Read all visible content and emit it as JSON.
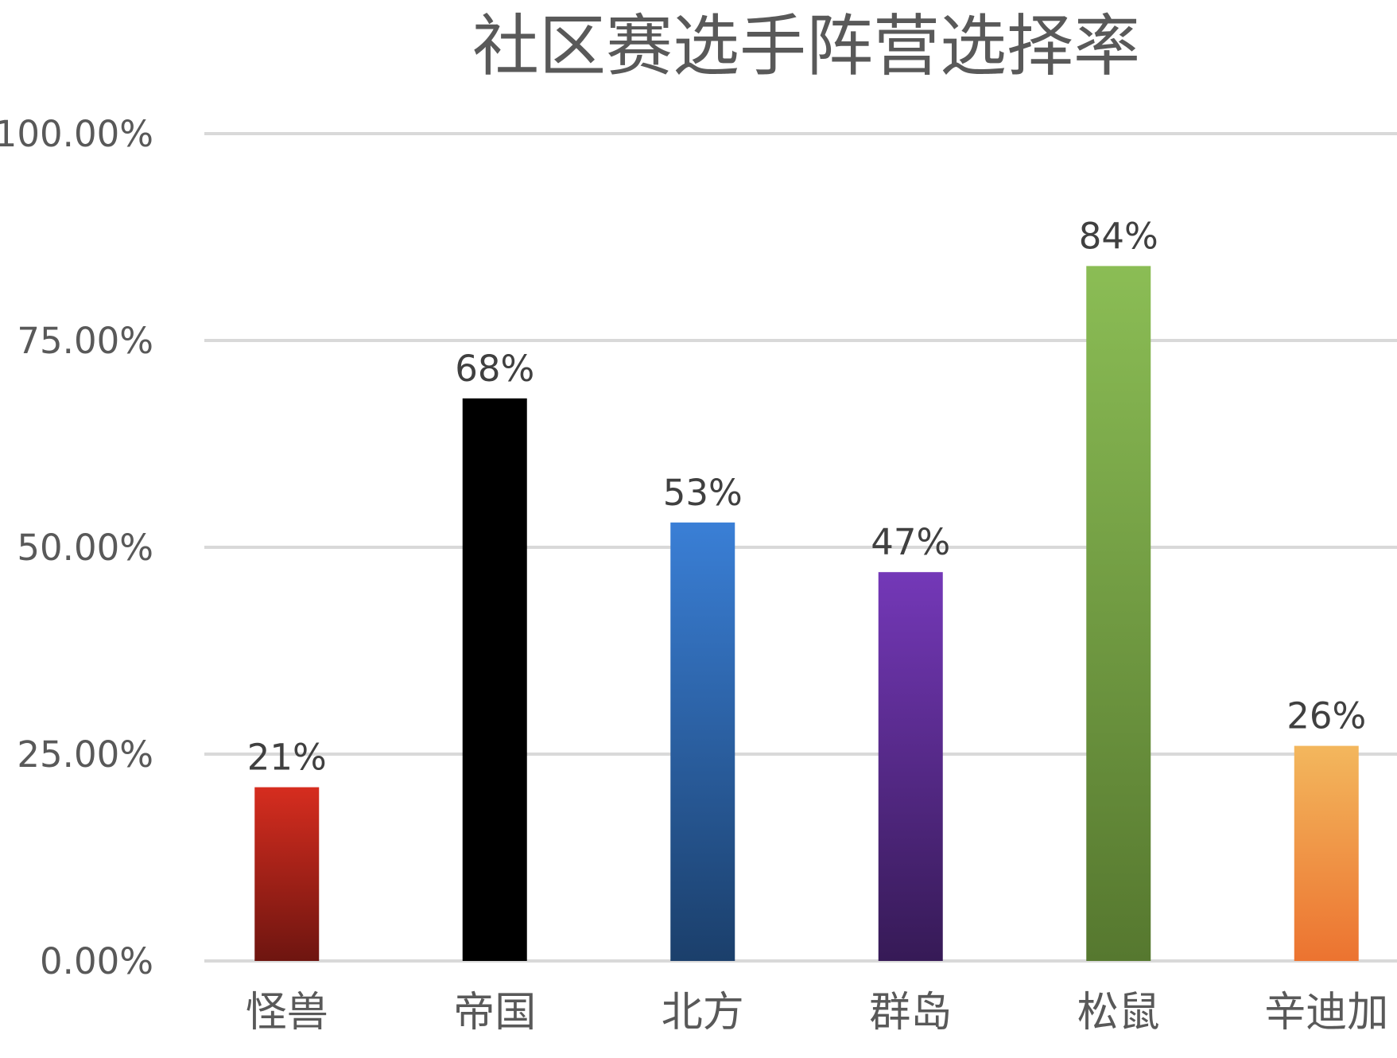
{
  "chart_data": {
    "type": "bar",
    "title": "社区赛选手阵营选择率",
    "categories": [
      "怪兽",
      "帝国",
      "北方",
      "群岛",
      "松鼠",
      "辛迪加"
    ],
    "values": [
      21,
      68,
      53,
      47,
      84,
      26
    ],
    "data_labels": [
      "21%",
      "68%",
      "53%",
      "47%",
      "84%",
      "26%"
    ],
    "ylim": [
      0,
      100
    ],
    "y_ticks": [
      {
        "value": 0,
        "label": "0.00%"
      },
      {
        "value": 25,
        "label": "25.00%"
      },
      {
        "value": 50,
        "label": "50.00%"
      },
      {
        "value": 75,
        "label": "75.00%"
      },
      {
        "value": 100,
        "label": "100.00%"
      }
    ],
    "grid": true,
    "legend": "none",
    "colors": [
      {
        "top": "#d62d1f",
        "bottom": "#6e1510"
      },
      {
        "top": "#000000",
        "bottom": "#000000"
      },
      {
        "top": "#3a7fd6",
        "bottom": "#1b3f6b"
      },
      {
        "top": "#7438b8",
        "bottom": "#361a56"
      },
      {
        "top": "#8bbd55",
        "bottom": "#56782f"
      },
      {
        "top": "#f3b75d",
        "bottom": "#ec7330"
      }
    ]
  }
}
